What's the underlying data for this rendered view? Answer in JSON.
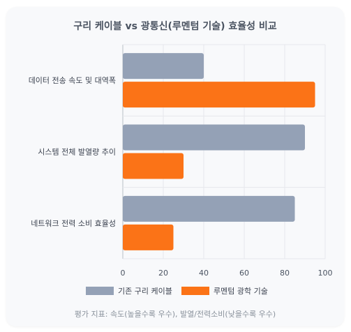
{
  "chart_data": {
    "type": "bar",
    "orientation": "horizontal",
    "title": "구리 케이블 vs 광통신(루멘텀 기술) 효율성 비교",
    "categories": [
      "데이터 전송 속도 및 대역폭",
      "시스템 전체 발열량 추이",
      "네트워크 전력 소비 효율성"
    ],
    "series": [
      {
        "name": "기존 구리 케이블",
        "color": "#94a1b6",
        "values": [
          40,
          90,
          85
        ]
      },
      {
        "name": "루멘텀 광학 기술",
        "color": "#fb7317",
        "values": [
          95,
          30,
          25
        ]
      }
    ],
    "xlim": [
      0,
      100
    ],
    "xticks": [
      0,
      20,
      40,
      60,
      80,
      100
    ],
    "grid": true,
    "legend_position": "bottom",
    "footnote": "평가 지표: 속도(높을수록 우수), 발열/전력소비(낮을수록 우수)"
  }
}
